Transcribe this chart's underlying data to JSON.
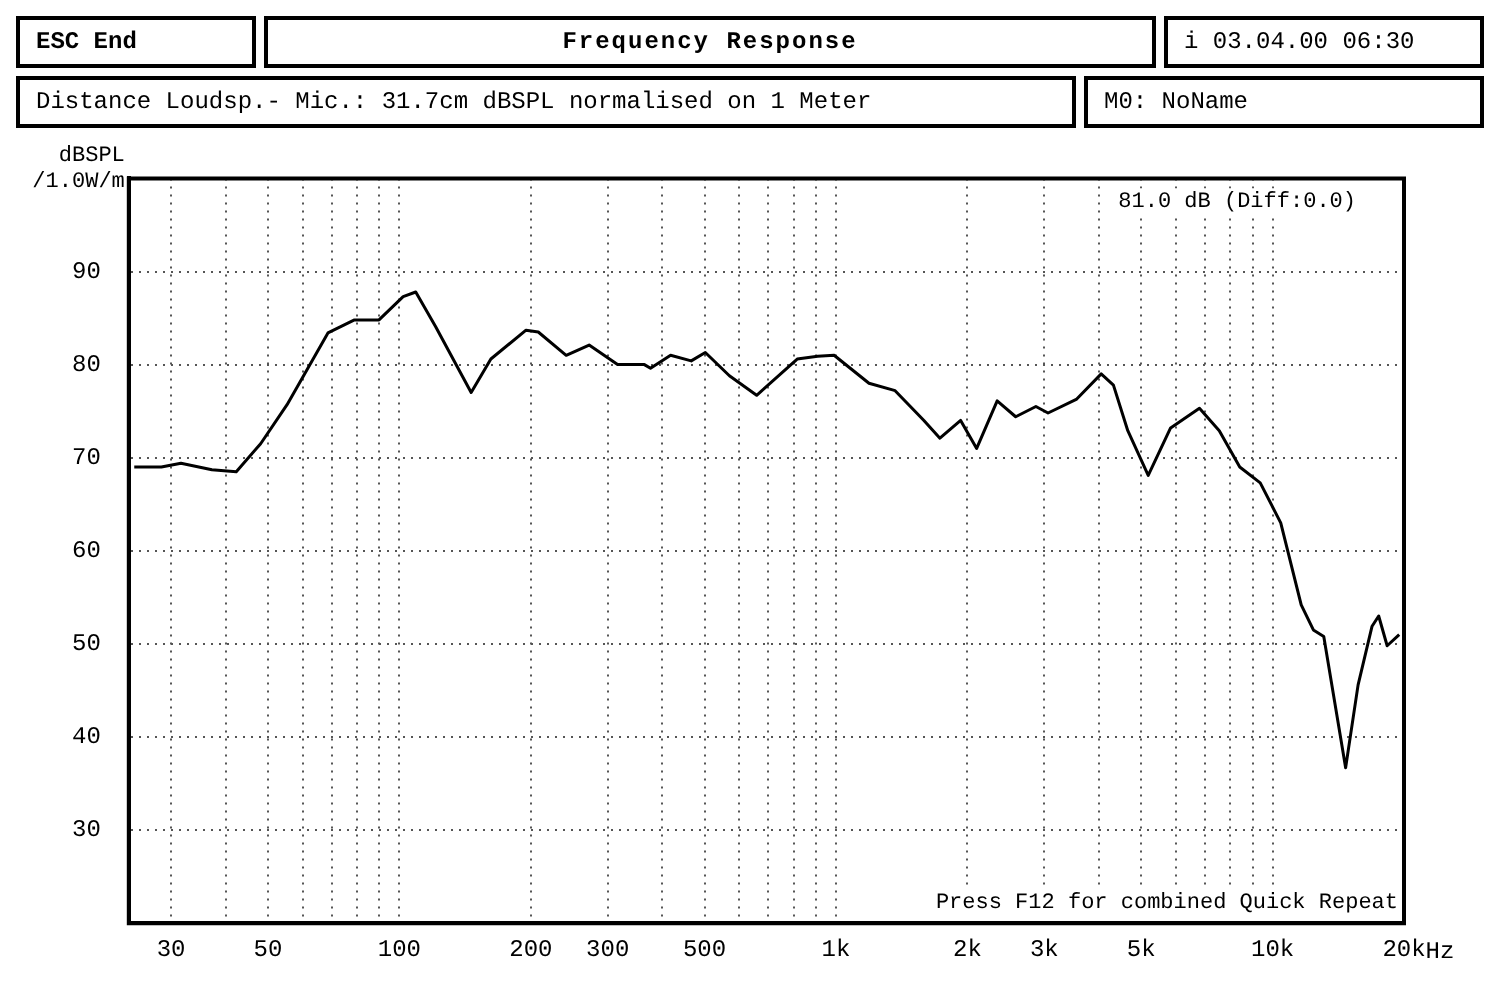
{
  "chart_data": {
    "type": "line",
    "title": "Frequency Response",
    "subtitle": "Distance Loudsp.- Mic.: 31.7cm dBSPL normalised on 1 Meter",
    "ylabel": "dBSPL /1.0W/m",
    "annotations": [
      "ESC End",
      "i 03.04.00 06:30",
      "M0: NoName",
      "81.0 dB (Diff:0.0)",
      "Press F12 for combined Quick Repeat"
    ],
    "x": [
      24.7,
      28.5,
      31.6,
      37.2,
      42.3,
      48.1,
      55.3,
      68.6,
      78.9,
      89.8,
      102,
      109,
      121,
      146,
      162,
      195,
      208,
      241,
      272,
      316,
      364,
      376,
      418,
      466,
      502,
      570,
      658,
      815,
      908,
      990,
      1190,
      1366,
      1590,
      1730,
      1930,
      2100,
      2340,
      2580,
      2870,
      3060,
      3560,
      4050,
      4320,
      4660,
      5190,
      5840,
      6800,
      7550,
      8410,
      9370,
      10440,
      11630,
      12400,
      13100,
      14700,
      15700,
      16900,
      17500,
      18300,
      19500
    ],
    "series": [
      {
        "color": "#000000",
        "values": [
          69,
          69,
          69.4,
          68.7,
          68.5,
          71.5,
          75.7,
          83.4,
          84.8,
          84.8,
          87.3,
          87.8,
          84.1,
          77,
          80.6,
          83.7,
          83.5,
          81,
          82.1,
          80,
          80,
          79.6,
          81,
          80.4,
          81.3,
          78.8,
          76.7,
          80.6,
          80.9,
          81,
          78,
          77.2,
          74,
          72.1,
          74,
          71,
          76.1,
          74.4,
          75.5,
          74.8,
          76.3,
          79,
          77.8,
          72.9,
          68.1,
          73.2,
          75.3,
          72.9,
          69,
          67.3,
          63,
          54.2,
          51.5,
          50.8,
          36.7,
          45.6,
          51.9,
          53,
          49.8,
          51
        ]
      }
    ],
    "log": "x",
    "xlim": [
      24,
      20000
    ],
    "xticks": [
      30,
      {
        "value": 40,
        "label": null
      },
      50,
      {
        "value": 60,
        "label": null
      },
      {
        "value": 70,
        "label": null
      },
      {
        "value": 80,
        "label": null
      },
      {
        "value": 90,
        "label": null
      },
      100,
      200,
      300,
      {
        "value": 400,
        "label": null
      },
      500,
      {
        "value": 600,
        "label": null
      },
      {
        "value": 700,
        "label": null
      },
      {
        "value": 800,
        "label": null
      },
      {
        "value": 900,
        "label": null
      },
      {
        "value": 1000,
        "label": "1k"
      },
      {
        "value": 2000,
        "label": "2k"
      },
      {
        "value": 3000,
        "label": "3k"
      },
      {
        "value": 4000,
        "label": null
      },
      {
        "value": 5000,
        "label": "5k"
      },
      {
        "value": 6000,
        "label": null
      },
      {
        "value": 7000,
        "label": null
      },
      {
        "value": 8000,
        "label": null
      },
      {
        "value": 9000,
        "label": null
      },
      {
        "value": 10000,
        "label": "10k"
      },
      {
        "value": 20000,
        "label": "20k"
      }
    ],
    "xlabel": "Hz",
    "ylim": [
      20,
      100
    ],
    "yticks": [
      {
        "value": 20,
        "label": null
      },
      30,
      40,
      50,
      60,
      70,
      80,
      90,
      {
        "value": 100,
        "label": null
      }
    ],
    "grid": true,
    "legend": false,
    "marker": "none",
    "line_style": "solid"
  }
}
